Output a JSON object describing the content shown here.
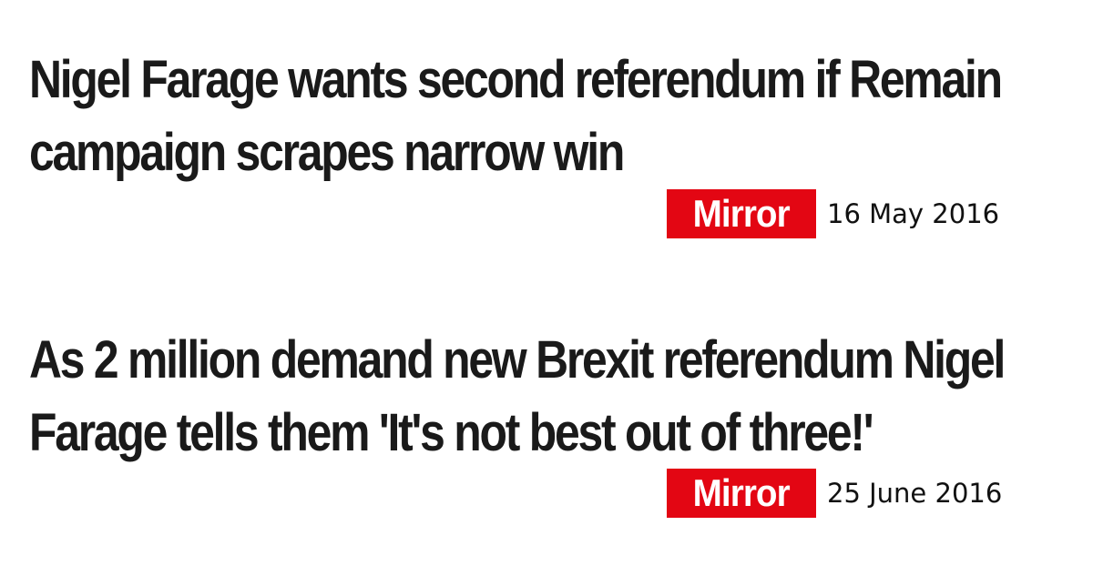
{
  "articles": [
    {
      "headline": "Nigel Farage wants second referendum if Remain campaign scrapes narrow win",
      "source": "Mirror",
      "date": "16 May 2016"
    },
    {
      "headline": "As 2 million demand new Brexit referendum Nigel Farage tells them 'It's not best out of three!'",
      "source": "Mirror",
      "date": "25 June 2016"
    }
  ],
  "colors": {
    "background": "#ffffff",
    "headline_text": "#1a1a1a",
    "logo_red": "#e30613",
    "logo_text": "#ffffff"
  }
}
